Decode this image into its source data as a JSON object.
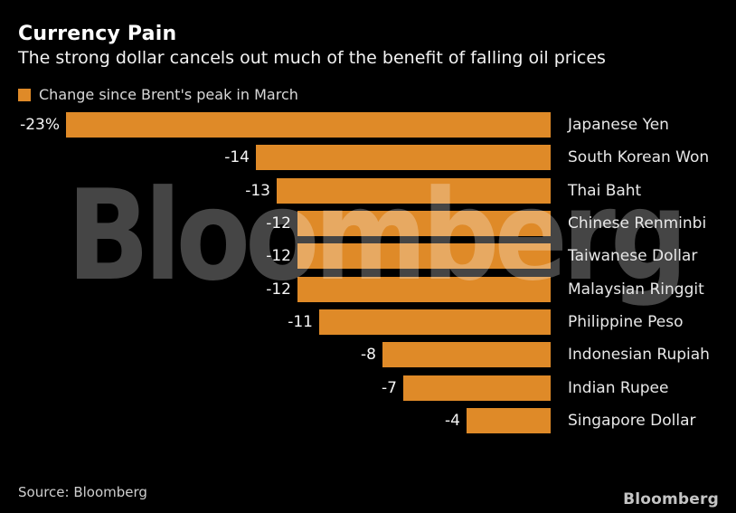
{
  "header": {
    "title": "Currency Pain",
    "subtitle": "The strong dollar cancels out much of the benefit of falling oil prices"
  },
  "legend": {
    "label": "Change since Brent's peak in March",
    "swatch_color": "#DF8A28"
  },
  "chart_data": {
    "type": "bar",
    "orientation": "horizontal",
    "title": "Currency Pain",
    "subtitle": "The strong dollar cancels out much of the benefit of falling oil prices",
    "xlabel": "",
    "ylabel": "",
    "unit": "%",
    "xlim": [
      -23,
      0
    ],
    "grid": false,
    "legend_position": "top-left",
    "legend_entries": [
      "Change since Brent's peak in March"
    ],
    "bar_color": "#DF8A28",
    "categories": [
      "Japanese Yen",
      "South Korean Won",
      "Thai Baht",
      "Chinese Renminbi",
      "Taiwanese Dollar",
      "Malaysian Ringgit",
      "Philippine Peso",
      "Indonesian Rupiah",
      "Indian Rupee",
      "Singapore Dollar"
    ],
    "values": [
      -23,
      -14,
      -13,
      -12,
      -12,
      -12,
      -11,
      -8,
      -7,
      -4
    ],
    "value_labels": [
      "-23%",
      "-14",
      "-13",
      "-12",
      "-12",
      "-12",
      "-11",
      "-8",
      "-7",
      "-4"
    ]
  },
  "watermark": {
    "text": "Bloomberg"
  },
  "footer": {
    "source": "Source: Bloomberg",
    "logo": "Bloomberg"
  },
  "colors": {
    "background": "#000000",
    "bar": "#DF8A28",
    "title_text": "#FFFFFF",
    "subtitle_text": "#F2F2F2",
    "legend_text": "#D8D8D8",
    "value_text": "#F5F5F5",
    "category_text": "#E8E8E8",
    "source_text": "#CFCFCF",
    "logo_text": "#C4C4C4",
    "watermark_overlay": "rgba(255,255,255,0.27)"
  }
}
